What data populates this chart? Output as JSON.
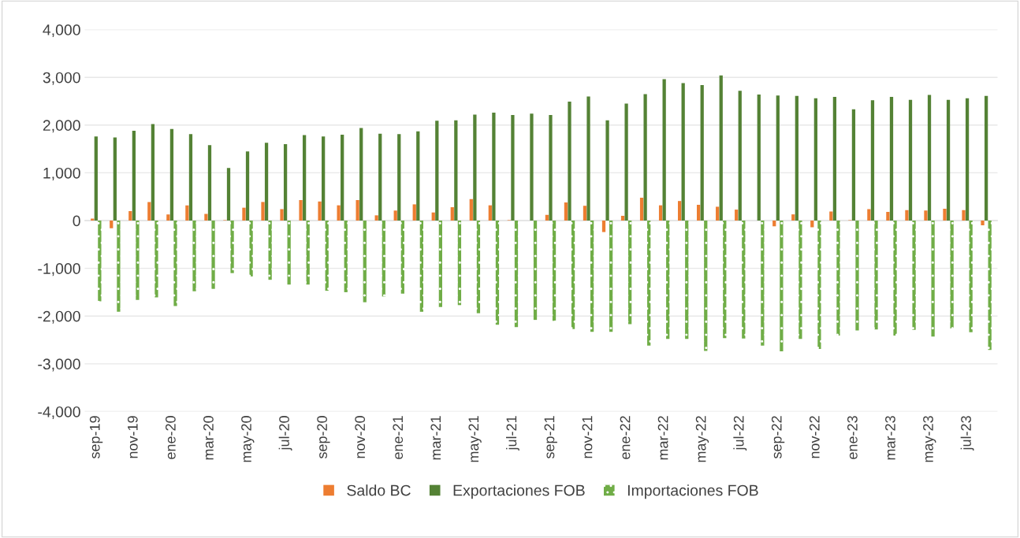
{
  "chart_data": {
    "type": "bar",
    "categories": [
      "sep-19",
      null,
      "nov-19",
      null,
      "ene-20",
      null,
      "mar-20",
      null,
      "may-20",
      null,
      "jul-20",
      null,
      "sep-20",
      null,
      "nov-20",
      null,
      "ene-21",
      null,
      "mar-21",
      null,
      "may-21",
      null,
      "jul-21",
      null,
      "sep-21",
      null,
      "nov-21",
      null,
      "ene-22",
      null,
      "mar-22",
      null,
      "may-22",
      null,
      "jul-22",
      null,
      "sep-22",
      null,
      "nov-22",
      null,
      "ene-23",
      null,
      "mar-23",
      null,
      "may-23",
      null,
      "jul-23",
      null
    ],
    "series": [
      {
        "name": "Saldo BC",
        "color": "#ed7d31",
        "values": [
          40,
          -160,
          200,
          390,
          130,
          320,
          140,
          10,
          270,
          390,
          240,
          430,
          400,
          320,
          430,
          110,
          210,
          340,
          170,
          280,
          450,
          320,
          10,
          0,
          120,
          380,
          310,
          -240,
          100,
          480,
          320,
          410,
          330,
          290,
          230,
          0,
          -120,
          130,
          -140,
          190,
          10,
          240,
          180,
          220,
          210,
          250,
          220,
          -100
        ]
      },
      {
        "name": "Exportaciones FOB",
        "color": "#548235",
        "values": [
          1760,
          1740,
          1880,
          2020,
          1920,
          1810,
          1580,
          1100,
          1450,
          1630,
          1600,
          1790,
          1760,
          1800,
          1940,
          1820,
          1810,
          1870,
          2090,
          2100,
          2220,
          2260,
          2210,
          2240,
          2210,
          2490,
          2600,
          2100,
          2450,
          2650,
          2960,
          2880,
          2840,
          3040,
          2720,
          2640,
          2620,
          2610,
          2560,
          2590,
          2330,
          2520,
          2590,
          2530,
          2630,
          2530,
          2560,
          2610
        ]
      },
      {
        "name": "Importaciones FOB",
        "color": "#70ad47",
        "values": [
          -1690,
          -1910,
          -1660,
          -1610,
          -1790,
          -1480,
          -1430,
          -1100,
          -1170,
          -1240,
          -1340,
          -1340,
          -1470,
          -1500,
          -1710,
          -1590,
          -1530,
          -1910,
          -1810,
          -1770,
          -1940,
          -2180,
          -2230,
          -2080,
          -2100,
          -2270,
          -2330,
          -2330,
          -2170,
          -2620,
          -2480,
          -2480,
          -2730,
          -2460,
          -2470,
          -2620,
          -2740,
          -2480,
          -2690,
          -2410,
          -2300,
          -2280,
          -2410,
          -2290,
          -2430,
          -2260,
          -2340,
          -2710
        ]
      }
    ],
    "ylim": [
      -4000,
      4000
    ],
    "yticks": [
      {
        "value": -4000,
        "label": "-4,000"
      },
      {
        "value": -3000,
        "label": "-3,000"
      },
      {
        "value": -2000,
        "label": "-2,000"
      },
      {
        "value": -1000,
        "label": "-1,000"
      },
      0,
      {
        "value": 1000,
        "label": "1,000"
      },
      {
        "value": 2000,
        "label": "2,000"
      },
      {
        "value": 3000,
        "label": "3,000"
      },
      {
        "value": 4000,
        "label": "4,000"
      }
    ],
    "grid": "y",
    "legend": "bottom"
  }
}
